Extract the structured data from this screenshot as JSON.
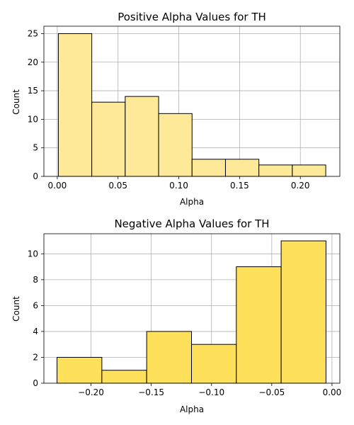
{
  "chart_data": [
    {
      "type": "bar",
      "title": "Positive Alpha Values for TH",
      "xlabel": "Alpha",
      "ylabel": "Count",
      "color": "#fee998",
      "grid": true,
      "xlim": [
        -0.011,
        0.2325
      ],
      "ylim": [
        0,
        26.3
      ],
      "xticks": [
        0.0,
        0.05,
        0.1,
        0.15,
        0.2
      ],
      "xtick_labels": [
        "0.00",
        "0.05",
        "0.10",
        "0.15",
        "0.20"
      ],
      "yticks": [
        0,
        5,
        10,
        15,
        20,
        25
      ],
      "ytick_labels": [
        "0",
        "5",
        "10",
        "15",
        "20",
        "25"
      ],
      "bins": [
        {
          "x0": 0.0009,
          "x1": 0.0284,
          "value": 25
        },
        {
          "x0": 0.0284,
          "x1": 0.0559,
          "value": 13
        },
        {
          "x0": 0.0559,
          "x1": 0.0834,
          "value": 14
        },
        {
          "x0": 0.0834,
          "x1": 0.1109,
          "value": 11
        },
        {
          "x0": 0.1109,
          "x1": 0.1384,
          "value": 3
        },
        {
          "x0": 0.1384,
          "x1": 0.1659,
          "value": 3
        },
        {
          "x0": 0.1659,
          "x1": 0.1934,
          "value": 2
        },
        {
          "x0": 0.1934,
          "x1": 0.2209,
          "value": 2
        }
      ]
    },
    {
      "type": "bar",
      "title": "Negative Alpha Values for TH",
      "xlabel": "Alpha",
      "ylabel": "Count",
      "color": "#ffe05a",
      "grid": true,
      "xlim": [
        -0.2391,
        0.0065
      ],
      "ylim": [
        0,
        11.55
      ],
      "xticks": [
        -0.2,
        -0.15,
        -0.1,
        -0.05,
        0.0
      ],
      "xtick_labels": [
        "−0.20",
        "−0.15",
        "−0.10",
        "−0.05",
        "0.00"
      ],
      "yticks": [
        0,
        2,
        4,
        6,
        8,
        10
      ],
      "ytick_labels": [
        "0",
        "2",
        "4",
        "6",
        "8",
        "10"
      ],
      "bins": [
        {
          "x0": -0.2282,
          "x1": -0.191,
          "value": 2
        },
        {
          "x0": -0.191,
          "x1": -0.1538,
          "value": 1
        },
        {
          "x0": -0.1538,
          "x1": -0.1166,
          "value": 4
        },
        {
          "x0": -0.1166,
          "x1": -0.0794,
          "value": 3
        },
        {
          "x0": -0.0794,
          "x1": -0.0422,
          "value": 9
        },
        {
          "x0": -0.0422,
          "x1": -0.005,
          "value": 11
        }
      ]
    }
  ]
}
